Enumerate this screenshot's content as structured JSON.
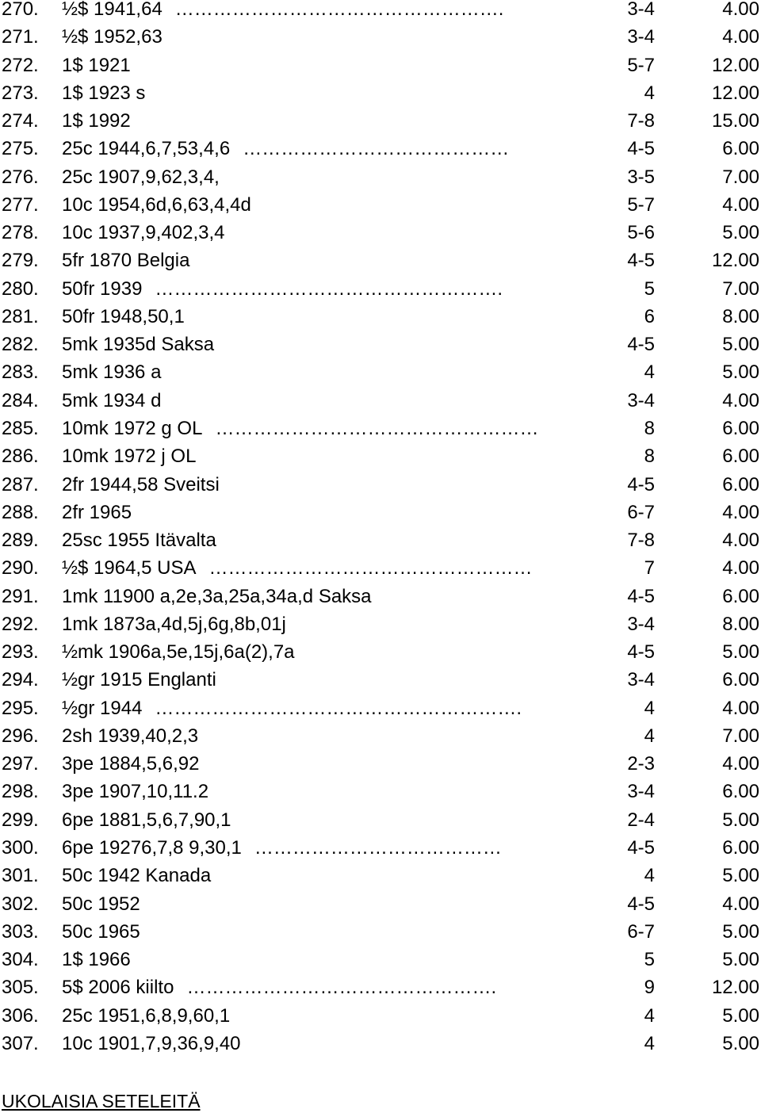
{
  "rows": [
    {
      "num": "270.",
      "desc": "½$ 1941,64",
      "dots": "…………………………………………….",
      "grade": "3-4",
      "price": "4.00"
    },
    {
      "num": "271.",
      "desc": "½$ 1952,63",
      "dots": "",
      "grade": "3-4",
      "price": "4.00"
    },
    {
      "num": "272.",
      "desc": "1$ 1921",
      "dots": "",
      "grade": "5-7",
      "price": "12.00"
    },
    {
      "num": "273.",
      "desc": "1$ 1923 s",
      "dots": "",
      "grade": "4",
      "price": "12.00"
    },
    {
      "num": "274.",
      "desc": "1$ 1992",
      "dots": "",
      "grade": "7-8",
      "price": "15.00"
    },
    {
      "num": "275.",
      "desc": "25c 1944,6,7,53,4,6",
      "dots": "……………………………………",
      "grade": "4-5",
      "price": "6.00"
    },
    {
      "num": "276.",
      "desc": "25c 1907,9,62,3,4,",
      "dots": "",
      "grade": "3-5",
      "price": "7.00"
    },
    {
      "num": "277.",
      "desc": "10c 1954,6d,6,63,4,4d",
      "dots": "",
      "grade": "5-7",
      "price": "4.00"
    },
    {
      "num": "278.",
      "desc": "10c 1937,9,402,3,4",
      "dots": "",
      "grade": "5-6",
      "price": "5.00"
    },
    {
      "num": "279.",
      "desc": "5fr 1870 Belgia",
      "dots": "",
      "grade": "4-5",
      "price": "12.00"
    },
    {
      "num": "280.",
      "desc": "50fr 1939",
      "dots": "……………………………………………….",
      "grade": "5",
      "price": "7.00"
    },
    {
      "num": "281.",
      "desc": "50fr 1948,50,1",
      "dots": "",
      "grade": "6",
      "price": "8.00"
    },
    {
      "num": "282.",
      "desc": "5mk 1935d Saksa",
      "dots": "",
      "grade": "4-5",
      "price": "5.00"
    },
    {
      "num": "283.",
      "desc": "5mk 1936 a",
      "dots": "",
      "grade": "4",
      "price": "5.00"
    },
    {
      "num": "284.",
      "desc": "5mk 1934 d",
      "dots": "",
      "grade": "3-4",
      "price": "4.00"
    },
    {
      "num": "285.",
      "desc": "10mk 1972 g OL",
      "dots": "……………………………………………",
      "grade": "8",
      "price": "6.00"
    },
    {
      "num": "286.",
      "desc": "10mk 1972 j OL",
      "dots": "",
      "grade": "8",
      "price": "6.00"
    },
    {
      "num": "287.",
      "desc": "2fr 1944,58 Sveitsi",
      "dots": "",
      "grade": "4-5",
      "price": "6.00"
    },
    {
      "num": "288.",
      "desc": "2fr 1965",
      "dots": "",
      "grade": "6-7",
      "price": "4.00"
    },
    {
      "num": "289.",
      "desc": "25sc 1955 Itävalta",
      "dots": "",
      "grade": "7-8",
      "price": "4.00"
    },
    {
      "num": "290.",
      "desc": "½$ 1964,5 USA",
      "dots": "……………………………………………",
      "grade": "7",
      "price": "4.00"
    },
    {
      "num": "291.",
      "desc": "1mk 11900 a,2e,3a,25a,34a,d Saksa",
      "dots": "",
      "grade": "4-5",
      "price": "6.00"
    },
    {
      "num": "292.",
      "desc": "1mk 1873a,4d,5j,6g,8b,01j",
      "dots": "",
      "grade": "3-4",
      "price": "8.00"
    },
    {
      "num": "293.",
      "desc": "½mk 1906a,5e,15j,6a(2),7a",
      "dots": "",
      "grade": "4-5",
      "price": "5.00"
    },
    {
      "num": "294.",
      "desc": "½gr 1915 Englanti",
      "dots": "",
      "grade": "3-4",
      "price": "6.00"
    },
    {
      "num": "295.",
      "desc": "½gr 1944",
      "dots": "………………………………………………….",
      "grade": "4",
      "price": "4.00"
    },
    {
      "num": "296.",
      "desc": "2sh 1939,40,2,3",
      "dots": "",
      "grade": "4",
      "price": "7.00"
    },
    {
      "num": "297.",
      "desc": "3pe 1884,5,6,92",
      "dots": "",
      "grade": "2-3",
      "price": "4.00"
    },
    {
      "num": "298.",
      "desc": "3pe 1907,10,11.2",
      "dots": "",
      "grade": "3-4",
      "price": "6.00"
    },
    {
      "num": "299.",
      "desc": "6pe 1881,5,6,7,90,1",
      "dots": "",
      "grade": "2-4",
      "price": "5.00"
    },
    {
      "num": "300.",
      "desc": "6pe 19276,7,8 9,30,1",
      "dots": "…………………………………",
      "grade": "4-5",
      "price": "6.00"
    },
    {
      "num": "301.",
      "desc": "50c 1942 Kanada",
      "dots": "",
      "grade": "4",
      "price": "5.00"
    },
    {
      "num": "302.",
      "desc": "50c 1952",
      "dots": "",
      "grade": "4-5",
      "price": "4.00"
    },
    {
      "num": "303.",
      "desc": "50c 1965",
      "dots": "",
      "grade": "6-7",
      "price": "5.00"
    },
    {
      "num": "304.",
      "desc": "1$ 1966",
      "dots": "",
      "grade": "5",
      "price": "5.00"
    },
    {
      "num": "305.",
      "desc": "5$ 2006 kiilto",
      "dots": "………………………………………….",
      "grade": "9",
      "price": "12.00"
    },
    {
      "num": "306.",
      "desc": "25c 1951,6,8,9,60,1",
      "dots": "",
      "grade": "4",
      "price": "5.00"
    },
    {
      "num": "307.",
      "desc": "10c 1901,7,9,36,9,40",
      "dots": "",
      "grade": "4",
      "price": "5.00"
    }
  ],
  "section_heading": "UKOLAISIA SETELEITÄ"
}
